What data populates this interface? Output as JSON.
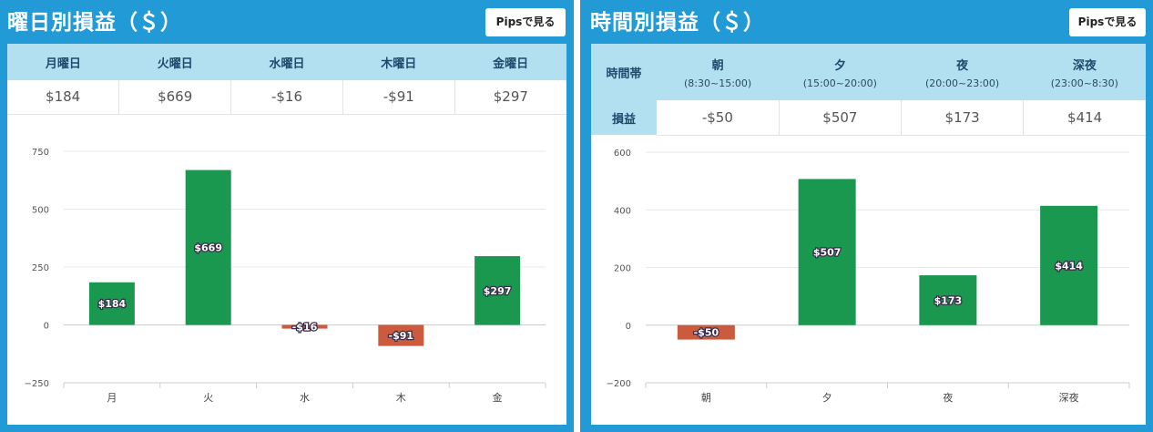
{
  "weekday_section": {
    "title": "曜日別損益（＄）",
    "pips_button": "Pipsで見る",
    "table": {
      "headers": [
        "月曜日",
        "火曜日",
        "水曜日",
        "木曜日",
        "金曜日"
      ],
      "values": [
        "$184",
        "$669",
        "-$16",
        "-$91",
        "$297"
      ]
    }
  },
  "time_section": {
    "title": "時間別損益（＄）",
    "pips_button": "Pipsで見る",
    "table": {
      "row_header_label": "時間帯",
      "row_value_label": "損益",
      "columns": [
        {
          "name": "朝",
          "range": "(8:30~15:00)",
          "value": "-$50"
        },
        {
          "name": "夕",
          "range": "(15:00~20:00)",
          "value": "$507"
        },
        {
          "name": "夜",
          "range": "(20:00~23:00)",
          "value": "$173"
        },
        {
          "name": "深夜",
          "range": "(23:00~8:30)",
          "value": "$414"
        }
      ]
    }
  },
  "colors": {
    "panel_bg": "#229ad6",
    "header_bg": "#b3e0f1",
    "positive_bar": "#1a9850",
    "negative_bar": "#cc5a3d"
  },
  "chart_data": [
    {
      "type": "bar",
      "categories": [
        "月",
        "火",
        "水",
        "木",
        "金"
      ],
      "values": [
        184,
        669,
        -16,
        -91,
        297
      ],
      "data_labels": [
        "$184",
        "$669",
        "-$16",
        "-$91",
        "$297"
      ],
      "yticks": [
        -250,
        0,
        250,
        500,
        750
      ],
      "ytick_labels": [
        "−250",
        "0",
        "250",
        "500",
        "750"
      ],
      "ylim": [
        -250,
        750
      ],
      "grid": true,
      "legend": "none"
    },
    {
      "type": "bar",
      "categories": [
        "朝",
        "夕",
        "夜",
        "深夜"
      ],
      "values": [
        -50,
        507,
        173,
        414
      ],
      "data_labels": [
        "-$50",
        "$507",
        "$173",
        "$414"
      ],
      "yticks": [
        -200,
        0,
        200,
        400,
        600
      ],
      "ytick_labels": [
        "−200",
        "0",
        "200",
        "400",
        "600"
      ],
      "ylim": [
        -200,
        600
      ],
      "grid": true,
      "legend": "none"
    }
  ]
}
